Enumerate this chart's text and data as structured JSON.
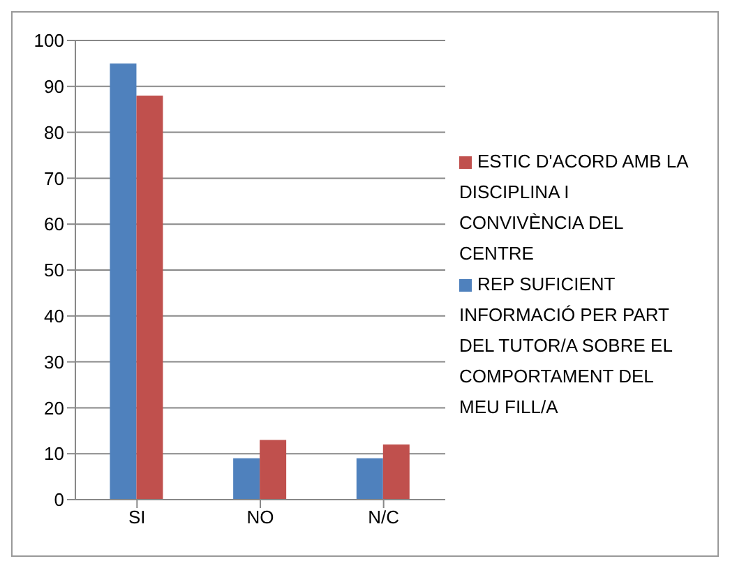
{
  "chart_data": {
    "type": "bar",
    "categories": [
      "SI",
      "NO",
      "N/C"
    ],
    "series": [
      {
        "name": "REP SUFICIENT INFORMACIÓ PER PART DEL TUTOR/A SOBRE EL COMPORTAMENT DEL MEU FILL/A",
        "color": "#4f81bd",
        "values": [
          95,
          9,
          9
        ]
      },
      {
        "name": "ESTIC D'ACORD AMB LA DISCIPLINA I CONVIVÈNCIA DEL CENTRE",
        "color": "#c0504d",
        "values": [
          88,
          13,
          12
        ]
      }
    ],
    "ylim": [
      0,
      100
    ],
    "yticks": [
      0,
      10,
      20,
      30,
      40,
      50,
      60,
      70,
      80,
      90,
      100
    ],
    "grid": "y",
    "legend": "right"
  }
}
